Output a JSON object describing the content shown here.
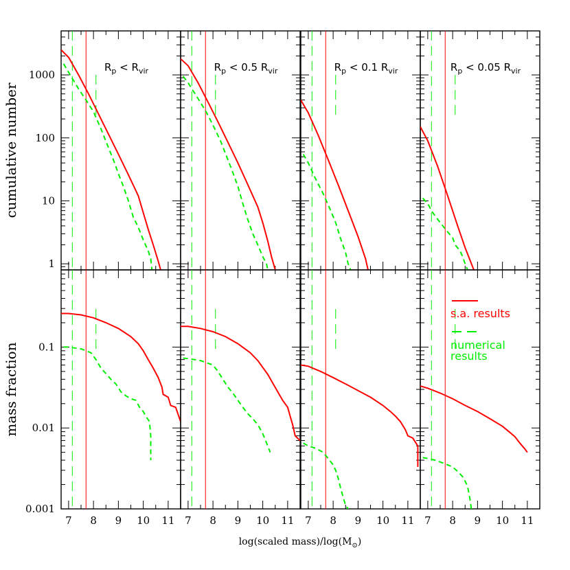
{
  "figure": {
    "xlabel_main": "log(scaled mass)/log(M",
    "xlabel_sub": "⊙",
    "xlabel_close": ")",
    "ylabel_top": "cumulative number",
    "ylabel_bottom": "mass fraction",
    "colors": {
      "sa": "#ff0000",
      "numerical": "#00ee00",
      "axes": "#000000"
    }
  },
  "chart_data": {
    "type": "line",
    "layout": "2x4 grid of panels sharing axes",
    "xlim": [
      6.7,
      11.5
    ],
    "xticks": [
      7,
      8,
      9,
      10,
      11
    ],
    "rows": [
      {
        "ylabel": "cumulative number",
        "yscale": "log",
        "ylim": [
          0.8,
          5000
        ],
        "yticks": [
          1,
          10,
          100,
          1000
        ],
        "yticklabels": [
          "1",
          "10",
          "100",
          "1000"
        ]
      },
      {
        "ylabel": "mass fraction",
        "yscale": "log",
        "ylim": [
          0.001,
          0.9
        ],
        "yticks": [
          0.001,
          0.01,
          0.1
        ],
        "yticklabels": [
          "0.001",
          "0.01",
          "0.1"
        ]
      }
    ],
    "legend": {
      "location": "bottom-right panel, upper-right",
      "entries": [
        {
          "name": "s.a. results",
          "style": "solid",
          "color": "#ff0000"
        },
        {
          "name_line1": "numerical",
          "name_line2": "results",
          "style": "dashed",
          "color": "#00ee00"
        }
      ]
    },
    "panels": [
      {
        "title": {
          "r": "R",
          "rsub": "p",
          "lt": "<",
          "coef": "",
          "v": "R",
          "vsub": "vir"
        },
        "resolution_line_x": 7.7,
        "numerical_limit_x": [
          7.15,
          8.1
        ],
        "cumulative": {
          "sa": {
            "x": [
              6.7,
              7.0,
              7.4,
              7.8,
              8.2,
              8.6,
              9.0,
              9.4,
              9.8,
              10.0,
              10.2,
              10.4,
              10.6,
              10.7
            ],
            "y": [
              2500,
              1900,
              1000,
              500,
              240,
              115,
              55,
              26,
              12,
              6.5,
              3.5,
              2.0,
              1.1,
              0.8
            ]
          },
          "numerical": {
            "x": [
              6.8,
              7.0,
              7.4,
              7.7,
              8.0,
              8.3,
              8.6,
              8.8,
              9.0,
              9.2,
              9.4,
              9.6,
              9.8,
              10.0,
              10.2,
              10.3,
              10.35
            ],
            "y": [
              1500,
              1100,
              600,
              400,
              260,
              140,
              70,
              45,
              27,
              17,
              10,
              5.5,
              3.8,
              2.4,
              1.6,
              1.2,
              0.8
            ]
          }
        },
        "mass_fraction": {
          "sa": {
            "x": [
              6.7,
              7.0,
              7.5,
              8.0,
              8.5,
              9.0,
              9.5,
              9.8,
              10.0,
              10.2,
              10.4,
              10.6,
              10.75,
              10.8,
              11.0,
              11.1,
              11.3,
              11.5
            ],
            "y": [
              0.26,
              0.26,
              0.25,
              0.23,
              0.2,
              0.17,
              0.135,
              0.11,
              0.09,
              0.07,
              0.055,
              0.042,
              0.032,
              0.026,
              0.024,
              0.019,
              0.018,
              0.012
            ]
          },
          "numerical": {
            "x": [
              6.8,
              7.0,
              7.5,
              7.9,
              8.1,
              8.3,
              8.5,
              8.7,
              8.9,
              9.1,
              9.3,
              9.5,
              9.7,
              9.85,
              10.0,
              10.1,
              10.25,
              10.3,
              10.3
            ],
            "y": [
              0.1,
              0.1,
              0.095,
              0.085,
              0.07,
              0.055,
              0.047,
              0.04,
              0.035,
              0.028,
              0.025,
              0.023,
              0.022,
              0.018,
              0.016,
              0.014,
              0.012,
              0.008,
              0.004
            ]
          }
        }
      },
      {
        "title": {
          "r": "R",
          "rsub": "p",
          "lt": "<",
          "coef": "0.5",
          "v": "R",
          "vsub": "vir"
        },
        "resolution_line_x": 7.7,
        "numerical_limit_x": [
          7.15,
          8.1
        ],
        "cumulative": {
          "sa": {
            "x": [
              6.7,
              7.0,
              7.4,
              7.8,
              8.2,
              8.6,
              9.0,
              9.4,
              9.8,
              10.0,
              10.2,
              10.35,
              10.5
            ],
            "y": [
              1800,
              1400,
              750,
              370,
              180,
              85,
              40,
              18,
              8,
              4.5,
              2.3,
              1.3,
              0.8
            ]
          },
          "numerical": {
            "x": [
              6.8,
              7.0,
              7.4,
              7.7,
              8.0,
              8.3,
              8.6,
              8.8,
              9.0,
              9.2,
              9.4,
              9.6,
              9.8,
              10.0,
              10.15,
              10.2
            ],
            "y": [
              950,
              750,
              420,
              270,
              160,
              90,
              45,
              28,
              17,
              9,
              5,
              3,
              2,
              1.3,
              1.0,
              0.8
            ]
          }
        },
        "mass_fraction": {
          "sa": {
            "x": [
              6.7,
              7.0,
              7.5,
              8.0,
              8.5,
              9.0,
              9.5,
              9.8,
              10.0,
              10.2,
              10.4,
              10.6,
              10.8,
              11.0,
              11.1,
              11.2,
              11.3,
              11.5
            ],
            "y": [
              0.18,
              0.18,
              0.17,
              0.155,
              0.135,
              0.11,
              0.085,
              0.068,
              0.056,
              0.046,
              0.036,
              0.028,
              0.022,
              0.018,
              0.014,
              0.011,
              0.008,
              0.007
            ]
          },
          "numerical": {
            "x": [
              6.8,
              7.0,
              7.5,
              8.0,
              8.2,
              8.4,
              8.6,
              8.8,
              9.0,
              9.2,
              9.4,
              9.6,
              9.8,
              10.0,
              10.2,
              10.3
            ],
            "y": [
              0.073,
              0.072,
              0.068,
              0.06,
              0.05,
              0.04,
              0.032,
              0.027,
              0.022,
              0.018,
              0.015,
              0.013,
              0.011,
              0.0085,
              0.006,
              0.005
            ]
          }
        }
      },
      {
        "title": {
          "r": "R",
          "rsub": "p",
          "lt": "<",
          "coef": "0.1",
          "v": "R",
          "vsub": "vir"
        },
        "resolution_line_x": 7.7,
        "numerical_limit_x": [
          7.15,
          8.1
        ],
        "cumulative": {
          "sa": {
            "x": [
              6.7,
              7.0,
              7.4,
              7.8,
              8.2,
              8.6,
              9.0,
              9.3,
              9.4
            ],
            "y": [
              400,
              250,
              110,
              45,
              18,
              7,
              2.7,
              1.2,
              0.8
            ]
          },
          "numerical": {
            "x": [
              6.8,
              7.0,
              7.3,
              7.6,
              7.9,
              8.1,
              8.3,
              8.5,
              8.6,
              8.7
            ],
            "y": [
              55,
              40,
              22,
              13,
              7,
              4.5,
              2.5,
              1.5,
              1.0,
              0.8
            ]
          }
        },
        "mass_fraction": {
          "sa": {
            "x": [
              6.7,
              7.0,
              7.5,
              8.0,
              8.5,
              9.0,
              9.5,
              10.0,
              10.3,
              10.5,
              10.7,
              10.9,
              11.0,
              11.2,
              11.4,
              11.4
            ],
            "y": [
              0.06,
              0.058,
              0.05,
              0.042,
              0.035,
              0.029,
              0.024,
              0.019,
              0.016,
              0.014,
              0.012,
              0.0095,
              0.008,
              0.0075,
              0.006,
              0.0033
            ]
          },
          "numerical": {
            "x": [
              6.8,
              7.0,
              7.3,
              7.6,
              7.8,
              8.0,
              8.1,
              8.2,
              8.3,
              8.4,
              8.5,
              8.6
            ],
            "y": [
              0.0065,
              0.006,
              0.0056,
              0.005,
              0.0042,
              0.0035,
              0.003,
              0.0024,
              0.0018,
              0.0014,
              0.0011,
              0.001
            ]
          }
        }
      },
      {
        "title": {
          "r": "R",
          "rsub": "p",
          "lt": "<",
          "coef": "0.05",
          "v": "R",
          "vsub": "vir"
        },
        "resolution_line_x": 7.7,
        "numerical_limit_x": [
          7.15,
          8.1
        ],
        "cumulative": {
          "sa": {
            "x": [
              6.7,
              7.0,
              7.4,
              7.8,
              8.2,
              8.5,
              8.8,
              8.85
            ],
            "y": [
              150,
              90,
              35,
              12,
              4,
              1.8,
              0.9,
              0.8
            ]
          },
          "numerical": {
            "x": [
              6.8,
              7.0,
              7.2,
              7.5,
              7.8,
              8.0,
              8.1,
              8.3,
              8.4,
              8.5,
              8.6
            ],
            "y": [
              11,
              9,
              6.5,
              4.5,
              3.2,
              2.6,
              2.0,
              1.6,
              1.3,
              1.0,
              0.8
            ]
          }
        },
        "mass_fraction": {
          "sa": {
            "x": [
              6.7,
              7.0,
              7.5,
              8.0,
              8.5,
              9.0,
              9.5,
              10.0,
              10.3,
              10.5,
              10.7,
              10.9,
              11.0
            ],
            "y": [
              0.033,
              0.031,
              0.027,
              0.023,
              0.019,
              0.016,
              0.013,
              0.0105,
              0.0088,
              0.0078,
              0.0065,
              0.0055,
              0.005
            ]
          },
          "numerical": {
            "x": [
              6.8,
              7.0,
              7.3,
              7.6,
              7.8,
              8.0,
              8.2,
              8.4,
              8.5,
              8.6,
              8.7,
              8.75
            ],
            "y": [
              0.0043,
              0.0042,
              0.004,
              0.0037,
              0.0035,
              0.0033,
              0.0029,
              0.0025,
              0.0022,
              0.0019,
              0.0013,
              0.001
            ]
          }
        }
      }
    ]
  }
}
